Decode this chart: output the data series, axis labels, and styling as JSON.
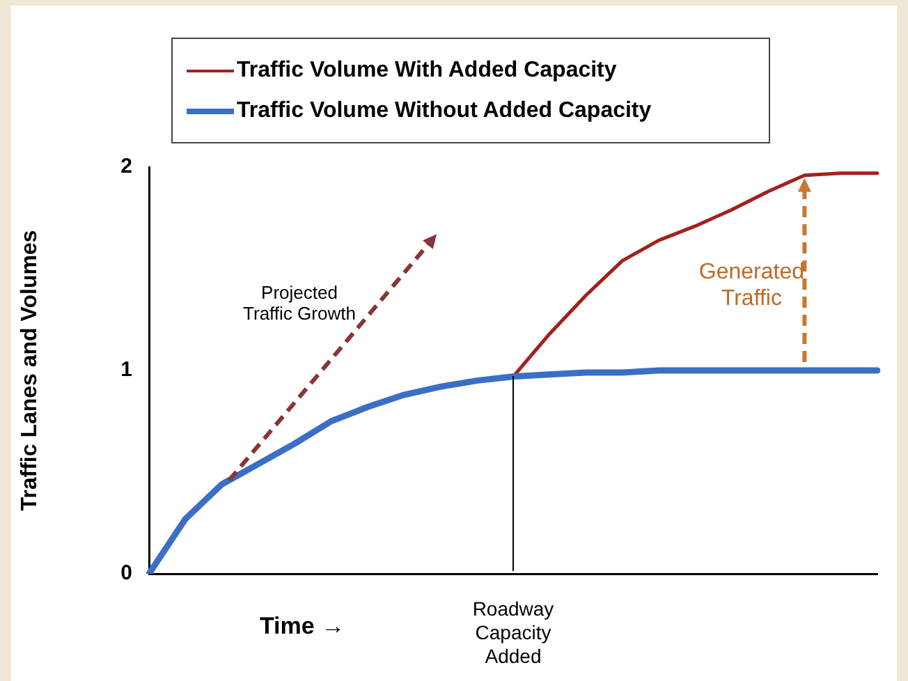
{
  "chart_data": {
    "type": "line",
    "xlabel": "Time →",
    "ylabel": "Traffic Lanes and Volumes",
    "categories": [
      null,
      null,
      null,
      null,
      null,
      null,
      null,
      null,
      null,
      null,
      null,
      null,
      null,
      null,
      null,
      null,
      null,
      null,
      null,
      null,
      null
    ],
    "series": [
      {
        "name": "Traffic Volume With Added Capacity",
        "color": "#a3201c",
        "values": [
          null,
          null,
          null,
          null,
          null,
          null,
          null,
          null,
          null,
          null,
          0.97,
          1.18,
          1.37,
          1.54,
          1.64,
          1.71,
          1.79,
          1.88,
          1.96,
          1.97,
          1.97
        ]
      },
      {
        "name": "Traffic Volume Without Added Capacity",
        "color": "#3b6fc6",
        "values": [
          0,
          0.27,
          0.44,
          0.54,
          0.64,
          0.75,
          0.82,
          0.88,
          0.92,
          0.95,
          0.97,
          0.98,
          0.99,
          0.99,
          1,
          1,
          1,
          1,
          1,
          1,
          1
        ]
      }
    ],
    "ylim": [
      0,
      2
    ],
    "yticks": [
      0,
      1,
      2
    ],
    "grid": false,
    "legend": "top left",
    "marker": "none",
    "line_style": "solid",
    "annotations": [
      "Projected Traffic Growth",
      "Generated Traffic",
      "Roadway Capacity Added"
    ]
  }
}
